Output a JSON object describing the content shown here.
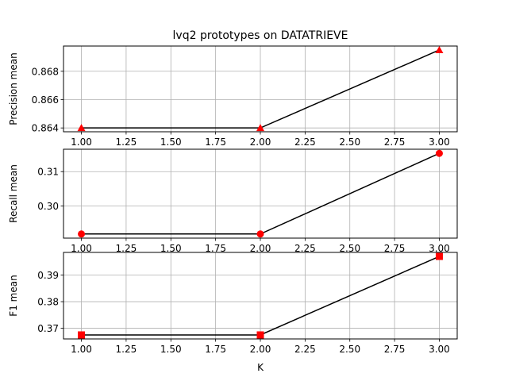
{
  "chart_data": {
    "title": "lvq2 prototypes on DATATRIEVE",
    "xlabel": "K",
    "colors": {
      "line": "#000000",
      "marker": "#ff0000",
      "grid": "#b0b0b0"
    },
    "grid": true,
    "subplots": [
      {
        "type": "line",
        "ylabel": "Precision mean",
        "marker": "triangle",
        "x": [
          1.0,
          2.0,
          3.0
        ],
        "values": [
          0.864,
          0.864,
          0.8695
        ],
        "xlim": [
          0.9,
          3.1
        ],
        "ylim": [
          0.86373,
          0.86978
        ],
        "xticks": [
          "1.00",
          "1.25",
          "1.50",
          "1.75",
          "2.00",
          "2.25",
          "2.50",
          "2.75",
          "3.00"
        ],
        "yticks": [
          "0.864",
          "0.866",
          "0.868"
        ]
      },
      {
        "type": "line",
        "ylabel": "Recall mean",
        "marker": "circle",
        "x": [
          1.0,
          2.0,
          3.0
        ],
        "values": [
          0.2919,
          0.2919,
          0.3153
        ],
        "xlim": [
          0.9,
          3.1
        ],
        "ylim": [
          0.2907,
          0.3165
        ],
        "xticks": [
          "1.00",
          "1.25",
          "1.50",
          "1.75",
          "2.00",
          "2.25",
          "2.50",
          "2.75",
          "3.00"
        ],
        "yticks": [
          "0.30",
          "0.31"
        ]
      },
      {
        "type": "line",
        "ylabel": "F1 mean",
        "marker": "square",
        "x": [
          1.0,
          2.0,
          3.0
        ],
        "values": [
          0.3675,
          0.3675,
          0.397
        ],
        "xlim": [
          0.9,
          3.1
        ],
        "ylim": [
          0.366,
          0.3985
        ],
        "xticks": [
          "1.00",
          "1.25",
          "1.50",
          "1.75",
          "2.00",
          "2.25",
          "2.50",
          "2.75",
          "3.00"
        ],
        "yticks": [
          "0.37",
          "0.38",
          "0.39"
        ]
      }
    ]
  }
}
